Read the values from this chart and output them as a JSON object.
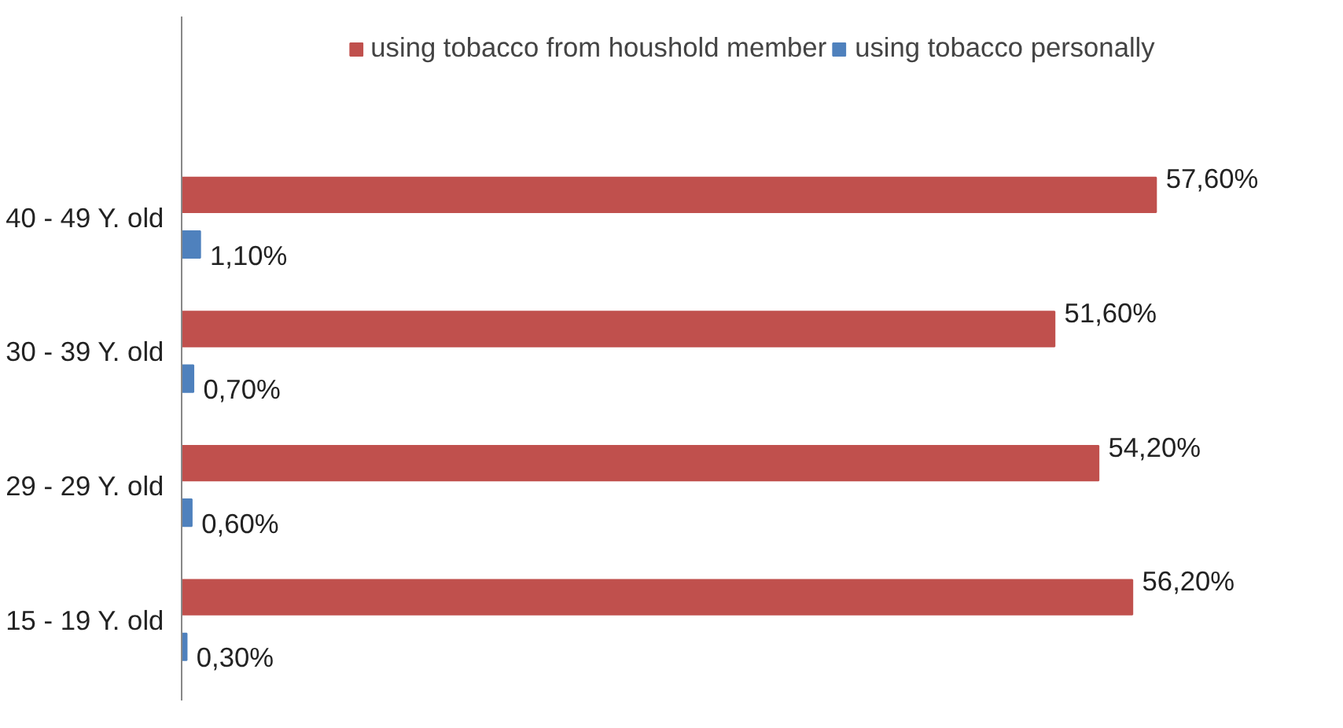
{
  "chart_data": {
    "type": "bar",
    "orientation": "horizontal",
    "categories": [
      "40 - 49 Y. old",
      "30 - 39 Y. old",
      "29 - 29 Y. old",
      "15 - 19 Y. old"
    ],
    "series": [
      {
        "name": "using tobacco from houshold member",
        "color": "#c0504d",
        "values": [
          57.6,
          51.6,
          54.2,
          56.2
        ],
        "value_labels": [
          "57,60%",
          "51,60%",
          "54,20%",
          "56,20%"
        ]
      },
      {
        "name": "using tobacco personally",
        "color": "#4f81bd",
        "values": [
          1.1,
          0.7,
          0.6,
          0.3
        ],
        "value_labels": [
          "1,10%",
          "0,70%",
          "0,60%",
          "0,30%"
        ]
      }
    ],
    "legend": "top",
    "grid": false,
    "tick_labels": "y"
  }
}
